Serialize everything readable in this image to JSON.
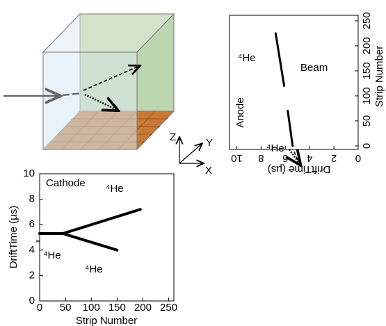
{
  "chart_data": [
    {
      "type": "line",
      "xlabel": "Strip Number",
      "ylabel": "DriftTime (µs)",
      "xlim": [
        0,
        260
      ],
      "ylim": [
        0,
        10
      ],
      "xticks": [
        0,
        50,
        100,
        150,
        200,
        250
      ],
      "yticks": [
        0,
        2,
        4,
        6,
        8,
        10
      ],
      "series": [
        {
          "color": "#000000",
          "x": [
            0,
            45
          ],
          "values": [
            5.3,
            5.3
          ]
        },
        {
          "color": "#000000",
          "x": [
            45,
            195
          ],
          "values": [
            5.3,
            7.2
          ]
        },
        {
          "color": "#000000",
          "x": [
            45,
            150
          ],
          "values": [
            5.3,
            4.0
          ]
        }
      ],
      "annotations": [
        "Cathode",
        "⁴He",
        "⁴He",
        "⁴He"
      ]
    },
    {
      "type": "line",
      "xlabel": "DriftTime (µs)",
      "ylabel": "Strip Number",
      "xlim": [
        10.6,
        0
      ],
      "ylim": [
        -7,
        261
      ],
      "xticks": [
        10,
        8,
        6,
        4,
        2,
        0
      ],
      "yticks": [
        0,
        50,
        100,
        150,
        200,
        250
      ],
      "series": [
        {
          "color": "#000000",
          "x": [
            5.4,
            5.8,
            null,
            6.1,
            6.8
          ],
          "values": [
            0,
            70,
            null,
            120,
            225
          ]
        }
      ],
      "annotations": [
        "Anode",
        "Beam",
        "⁴He",
        "⁴He"
      ]
    }
  ],
  "diagram": {
    "axes": [
      "Z",
      "Y",
      "X"
    ]
  }
}
